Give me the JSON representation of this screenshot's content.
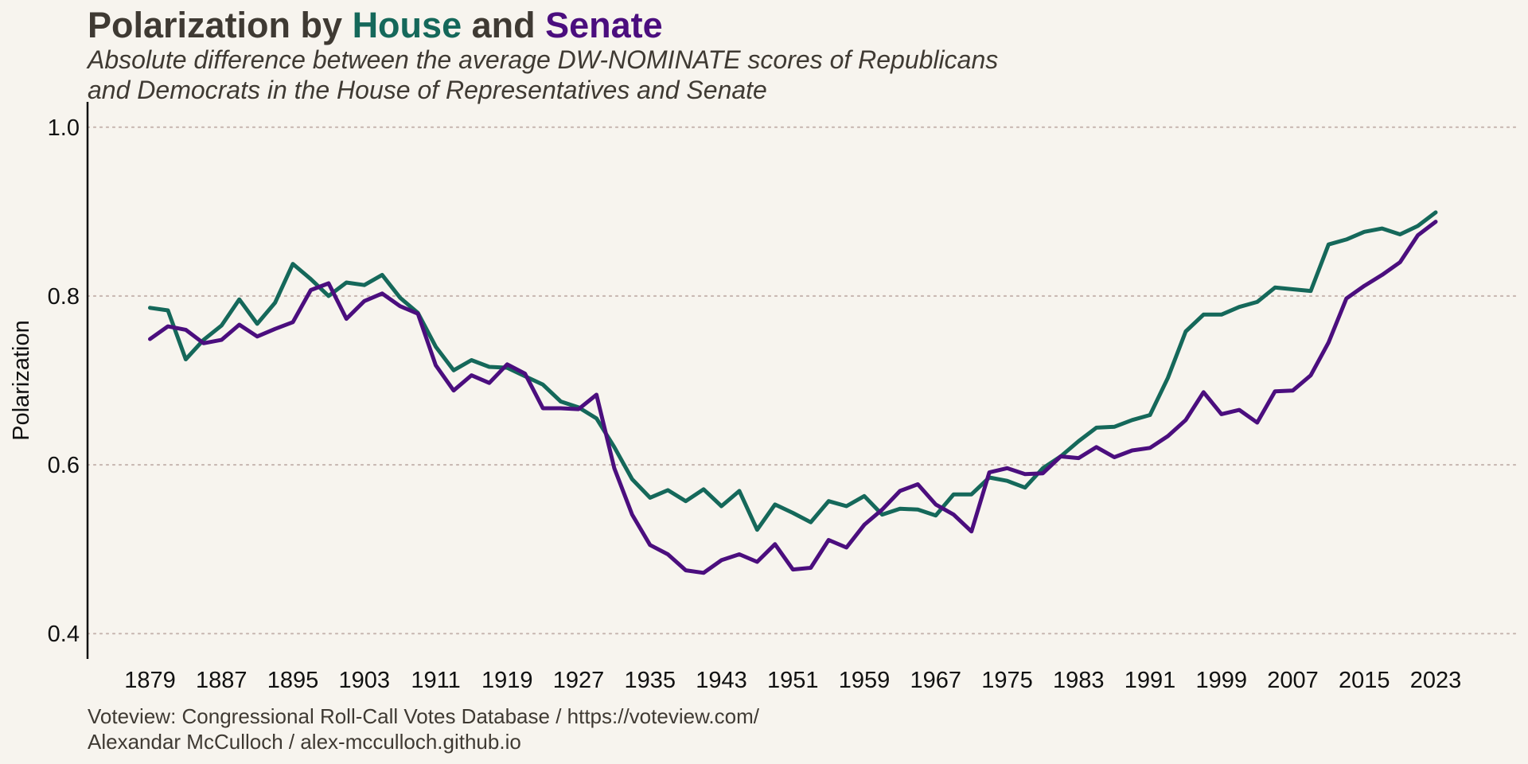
{
  "chart_data": {
    "type": "line",
    "title_parts": [
      {
        "text": "Polarization by ",
        "color": "#3f3a33"
      },
      {
        "text": "House",
        "color": "#15685a"
      },
      {
        "text": " and ",
        "color": "#3f3a33"
      },
      {
        "text": "Senate",
        "color": "#4b0e7e"
      }
    ],
    "subtitle_lines": [
      "Absolute difference between the average DW-NOMINATE scores of Republicans",
      "and Democrats in the House of Representatives and Senate"
    ],
    "caption_lines": [
      "Voteview: Congressional Roll-Call Votes Database / https://voteview.com/",
      "Alexandar McCulloch / alex-mcculloch.github.io"
    ],
    "xlabel": "",
    "ylabel": "Polarization",
    "xlim": [
      1872,
      2032
    ],
    "ylim": [
      0.37,
      1.03
    ],
    "x_ticks": [
      "1879",
      "1887",
      "1895",
      "1903",
      "1911",
      "1919",
      "1927",
      "1935",
      "1943",
      "1951",
      "1959",
      "1967",
      "1975",
      "1983",
      "1991",
      "1999",
      "2007",
      "2015",
      "2023"
    ],
    "y_ticks": [
      "0.4",
      "0.6",
      "0.8",
      "1.0"
    ],
    "grid": "horizontal dotted",
    "x": [
      1879,
      1881,
      1883,
      1885,
      1887,
      1889,
      1891,
      1893,
      1895,
      1897,
      1899,
      1901,
      1903,
      1905,
      1907,
      1909,
      1911,
      1913,
      1915,
      1917,
      1919,
      1921,
      1923,
      1925,
      1927,
      1929,
      1931,
      1933,
      1935,
      1937,
      1939,
      1941,
      1943,
      1945,
      1947,
      1949,
      1951,
      1953,
      1955,
      1957,
      1959,
      1961,
      1963,
      1965,
      1967,
      1969,
      1971,
      1973,
      1975,
      1977,
      1979,
      1981,
      1983,
      1985,
      1987,
      1989,
      1991,
      1993,
      1995,
      1997,
      1999,
      2001,
      2003,
      2005,
      2007,
      2009,
      2011,
      2013,
      2015,
      2017,
      2019,
      2021,
      2023
    ],
    "series": [
      {
        "name": "House",
        "color": "#15685a",
        "values": [
          0.786,
          0.783,
          0.725,
          0.748,
          0.765,
          0.796,
          0.767,
          0.792,
          0.838,
          0.82,
          0.8,
          0.816,
          0.813,
          0.825,
          0.798,
          0.78,
          0.74,
          0.712,
          0.724,
          0.716,
          0.715,
          0.705,
          0.695,
          0.675,
          0.668,
          0.655,
          0.621,
          0.583,
          0.561,
          0.57,
          0.557,
          0.571,
          0.551,
          0.569,
          0.523,
          0.553,
          0.543,
          0.532,
          0.557,
          0.551,
          0.563,
          0.541,
          0.548,
          0.547,
          0.54,
          0.565,
          0.565,
          0.585,
          0.581,
          0.573,
          0.596,
          0.61,
          0.628,
          0.644,
          0.645,
          0.653,
          0.659,
          0.703,
          0.758,
          0.778,
          0.778,
          0.787,
          0.793,
          0.81,
          0.808,
          0.806,
          0.861,
          0.867,
          0.876,
          0.88,
          0.873,
          0.883,
          0.899
        ]
      },
      {
        "name": "Senate",
        "color": "#4b0e7e",
        "values": [
          0.749,
          0.764,
          0.76,
          0.744,
          0.748,
          0.766,
          0.752,
          0.761,
          0.769,
          0.807,
          0.815,
          0.773,
          0.794,
          0.803,
          0.788,
          0.779,
          0.718,
          0.688,
          0.706,
          0.697,
          0.719,
          0.708,
          0.667,
          0.667,
          0.666,
          0.683,
          0.596,
          0.541,
          0.505,
          0.494,
          0.475,
          0.472,
          0.487,
          0.494,
          0.485,
          0.506,
          0.476,
          0.478,
          0.511,
          0.502,
          0.529,
          0.547,
          0.569,
          0.577,
          0.553,
          0.541,
          0.521,
          0.591,
          0.596,
          0.589,
          0.59,
          0.61,
          0.608,
          0.621,
          0.609,
          0.617,
          0.62,
          0.634,
          0.653,
          0.686,
          0.66,
          0.665,
          0.65,
          0.687,
          0.688,
          0.706,
          0.745,
          0.797,
          0.812,
          0.825,
          0.84,
          0.872,
          0.888
        ]
      }
    ]
  }
}
